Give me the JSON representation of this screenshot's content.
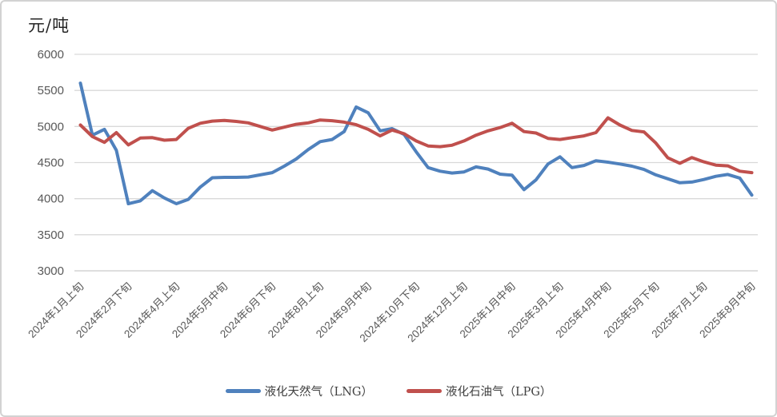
{
  "chart_data": {
    "type": "line",
    "title": "元/吨",
    "grid": true,
    "legend_position": "bottom",
    "y_axis": {
      "min": 3000,
      "max": 6000,
      "step": 500,
      "tick_labels": [
        "6000",
        "5500",
        "5000",
        "4500",
        "4000",
        "3500",
        "3000"
      ]
    },
    "x_axis": {
      "label_rotation_deg": -45,
      "points_per_label": 4,
      "tick_labels": [
        "2024年1月上旬",
        "2024年2月下旬",
        "2024年4月上旬",
        "2024年5月中旬",
        "2024年6月下旬",
        "2024年8月上旬",
        "2024年9月中旬",
        "2024年10月下旬",
        "2024年12月上旬",
        "2025年1月中旬",
        "2025年3月上旬",
        "2025年4月中旬",
        "2025年5月下旬",
        "2025年7月上旬",
        "2025年8月中旬"
      ]
    },
    "series": [
      {
        "name": "液化天然气（LNG）",
        "color": "#4F81BD",
        "values": [
          5600,
          4880,
          4960,
          4670,
          3930,
          3970,
          4110,
          4010,
          3930,
          3990,
          4160,
          4290,
          4295,
          4295,
          4300,
          4330,
          4360,
          4450,
          4550,
          4680,
          4790,
          4820,
          4930,
          5270,
          5190,
          4940,
          4970,
          4890,
          4650,
          4430,
          4380,
          4355,
          4370,
          4440,
          4410,
          4340,
          4325,
          4125,
          4260,
          4480,
          4580,
          4430,
          4460,
          4525,
          4505,
          4480,
          4450,
          4405,
          4330,
          4275,
          4220,
          4230,
          4265,
          4310,
          4335,
          4285,
          4050
        ]
      },
      {
        "name": "液化石油气（LPG）",
        "color": "#C0504D",
        "values": [
          5020,
          4860,
          4780,
          4915,
          4745,
          4840,
          4845,
          4810,
          4820,
          4975,
          5045,
          5075,
          5085,
          5070,
          5050,
          5000,
          4950,
          4990,
          5030,
          5050,
          5090,
          5080,
          5060,
          5025,
          4960,
          4870,
          4950,
          4900,
          4800,
          4730,
          4720,
          4740,
          4800,
          4880,
          4940,
          4985,
          5045,
          4930,
          4910,
          4835,
          4820,
          4845,
          4870,
          4915,
          5120,
          5020,
          4945,
          4925,
          4770,
          4565,
          4490,
          4570,
          4510,
          4465,
          4455,
          4380,
          4360
        ]
      }
    ],
    "palette": {
      "grid_line": "#D9D9D9",
      "axis_line": "#C9C9C9",
      "tick_text": "#595959",
      "title_text": "#262626",
      "legend_text": "#404040",
      "border": "#D2D2D2"
    }
  }
}
